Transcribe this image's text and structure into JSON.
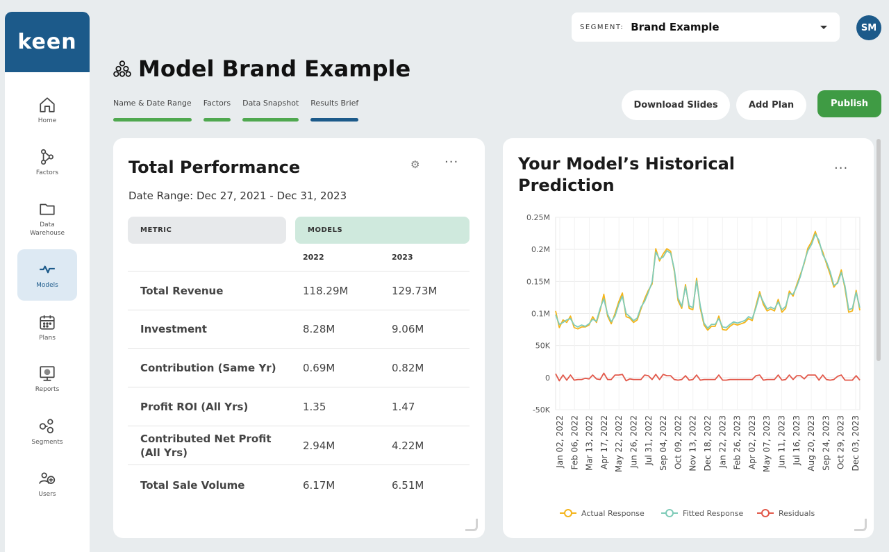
{
  "brand": {
    "logo_text": "keen"
  },
  "sidebar": {
    "items": [
      {
        "label": "Home",
        "icon": "home-icon"
      },
      {
        "label": "Factors",
        "icon": "factors-icon"
      },
      {
        "label": "Data\nWarehouse",
        "icon": "folder-icon"
      },
      {
        "label": "Models",
        "icon": "pulse-icon",
        "active": true
      },
      {
        "label": "Plans",
        "icon": "calendar-icon"
      },
      {
        "label": "Reports",
        "icon": "report-icon"
      },
      {
        "label": "Segments",
        "icon": "segments-icon"
      },
      {
        "label": "Users",
        "icon": "users-icon"
      }
    ]
  },
  "header": {
    "segment_label": "SEGMENT:",
    "segment_value": "Brand Example",
    "avatar_initials": "SM",
    "title": "Model Brand Example",
    "steps": [
      "Name & Date Range",
      "Factors",
      "Data Snapshot",
      "Results Brief"
    ],
    "buttons": {
      "download": "Download Slides",
      "add_plan": "Add Plan",
      "publish": "Publish"
    }
  },
  "colors": {
    "brand": "#1c5a8a",
    "complete": "#4fa84f",
    "publish": "#3f9b44",
    "actual": "#f4b41a",
    "fitted": "#7fcbb8",
    "residuals": "#e2584a"
  },
  "performance": {
    "title": "Total Performance",
    "date_range": "Date Range: Dec 27, 2021 - Dec 31, 2023",
    "metric_header": "METRIC",
    "models_header": "MODELS",
    "years": [
      "2022",
      "2023"
    ],
    "rows": [
      {
        "metric": "Total Revenue",
        "v2022": "118.29M",
        "v2023": "129.73M"
      },
      {
        "metric": "Investment",
        "v2022": "8.28M",
        "v2023": "9.06M"
      },
      {
        "metric": "Contribution (Same Yr)",
        "v2022": "0.69M",
        "v2023": "0.82M"
      },
      {
        "metric": "Profit ROI (All Yrs)",
        "v2022": "1.35",
        "v2023": "1.47"
      },
      {
        "metric": "Contributed Net Profit (All Yrs)",
        "v2022": "2.94M",
        "v2023": "4.22M"
      },
      {
        "metric": "Total Sale Volume",
        "v2022": "6.17M",
        "v2023": "6.51M"
      }
    ]
  },
  "prediction": {
    "title_line1": "Your Model’s Historical",
    "title_line2": "Prediction"
  },
  "chart_data": {
    "type": "line",
    "title": "",
    "xlabel": "",
    "ylabel": "",
    "ylim": [
      -50000,
      250000
    ],
    "yticks": [
      250000,
      200000,
      150000,
      100000,
      50000,
      0,
      -50000
    ],
    "ytick_labels": [
      "0.25M",
      "0.2M",
      "0.15M",
      "0.1M",
      "50K",
      "0",
      "-50K"
    ],
    "x_tick_labels": [
      "Jan 02, 2022",
      "Feb 06, 2022",
      "Mar 13, 2022",
      "Apr 17, 2022",
      "May 22, 2022",
      "Jun 26, 2022",
      "Jul 31, 2022",
      "Sep 04, 2022",
      "Oct 09, 2022",
      "Nov 13, 2022",
      "Dec 18, 2022",
      "Jan 22, 2023",
      "Feb 26, 2023",
      "Apr 02, 2023",
      "May 07, 2023",
      "Jun 11, 2023",
      "Jul 16, 2023",
      "Aug 20, 2023",
      "Sep 24, 2023",
      "Oct 29, 2023",
      "Dec 03, 2023"
    ],
    "grid": true,
    "legend": "bottom",
    "series": [
      {
        "name": "Actual Response",
        "values": [
          104000,
          78000,
          90000,
          86000,
          96000,
          78000,
          76000,
          79000,
          79000,
          82000,
          95000,
          86000,
          105000,
          130000,
          96000,
          84000,
          100000,
          118000,
          132000,
          95000,
          93000,
          86000,
          90000,
          107000,
          123000,
          136000,
          146000,
          201000,
          182000,
          193000,
          201000,
          197000,
          166000,
          120000,
          108000,
          145000,
          108000,
          106000,
          155000,
          108000,
          82000,
          74000,
          80000,
          80000,
          96000,
          75000,
          74000,
          80000,
          84000,
          82000,
          84000,
          86000,
          92000,
          89000,
          112000,
          134000,
          114000,
          104000,
          107000,
          104000,
          122000,
          102000,
          108000,
          135000,
          127000,
          145000,
          161000,
          178000,
          202000,
          212000,
          228000,
          210000,
          196000,
          178000,
          161000,
          141000,
          149000,
          168000,
          139000,
          102000,
          104000,
          136000,
          105000
        ]
      },
      {
        "name": "Fitted Response",
        "values": [
          98000,
          83000,
          86000,
          90000,
          92000,
          82000,
          79000,
          82000,
          80000,
          84000,
          91000,
          88000,
          108000,
          123000,
          99000,
          87000,
          96000,
          114000,
          127000,
          100000,
          95000,
          89000,
          93000,
          110000,
          119000,
          133000,
          149000,
          196000,
          185000,
          188000,
          198000,
          194000,
          169000,
          124000,
          111000,
          142000,
          112000,
          109000,
          151000,
          112000,
          85000,
          77000,
          83000,
          83000,
          92000,
          79000,
          78000,
          83000,
          87000,
          85000,
          87000,
          89000,
          95000,
          92000,
          109000,
          130000,
          118000,
          107000,
          110000,
          107000,
          118000,
          106000,
          111000,
          131000,
          130000,
          142000,
          158000,
          180000,
          198000,
          208000,
          224000,
          214000,
          192000,
          181000,
          165000,
          144000,
          147000,
          164000,
          143000,
          106000,
          108000,
          133000,
          109000
        ]
      },
      {
        "name": "Residuals",
        "values": [
          6000,
          -5000,
          4000,
          -4000,
          4000,
          -4000,
          -3000,
          -3000,
          -1000,
          -2000,
          4000,
          -2000,
          -3000,
          7000,
          -3000,
          -3000,
          4000,
          4000,
          5000,
          -5000,
          -2000,
          -3000,
          -3000,
          -3000,
          4000,
          3000,
          -3000,
          5000,
          -3000,
          5000,
          3000,
          3000,
          -3000,
          -4000,
          -3000,
          3000,
          -4000,
          -3000,
          4000,
          -4000,
          -3000,
          -3000,
          -3000,
          -3000,
          4000,
          -4000,
          -4000,
          -3000,
          -3000,
          -3000,
          -3000,
          -3000,
          -3000,
          -3000,
          3000,
          4000,
          -4000,
          -3000,
          -3000,
          -3000,
          4000,
          -4000,
          -3000,
          4000,
          -3000,
          3000,
          3000,
          -2000,
          4000,
          4000,
          4000,
          -4000,
          4000,
          -3000,
          -4000,
          -3000,
          2000,
          4000,
          -4000,
          -4000,
          -4000,
          3000,
          -4000
        ]
      }
    ]
  }
}
